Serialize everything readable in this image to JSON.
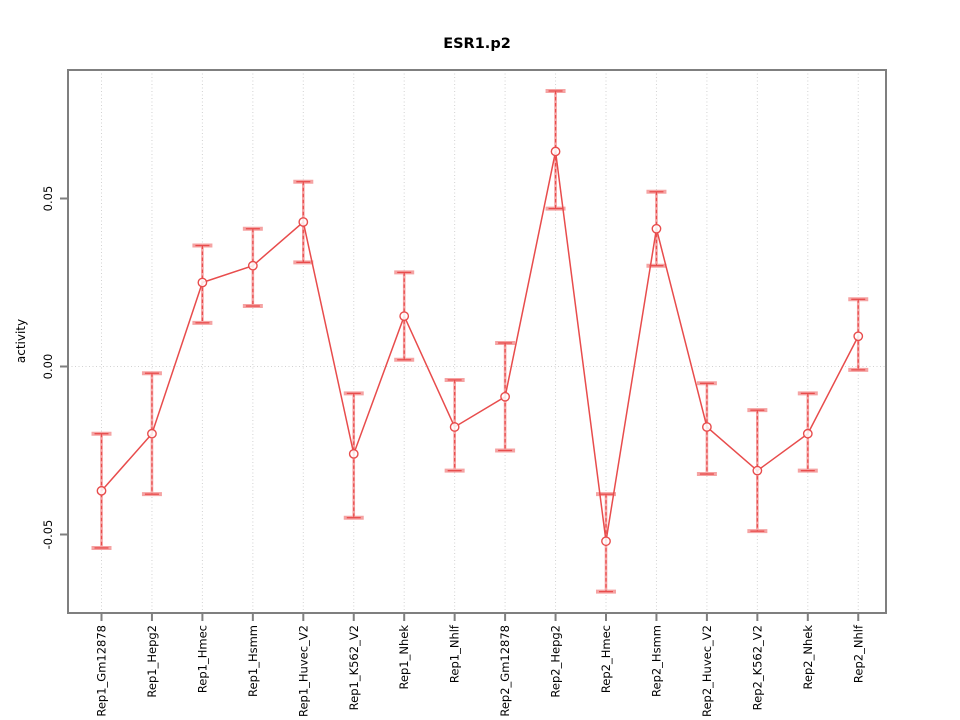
{
  "chart_data": {
    "type": "line",
    "title": "ESR1.p2",
    "xlabel": "",
    "ylabel": "activity",
    "ylim": [
      -0.0734,
      0.0883
    ],
    "grid": "dotted gray: vertical line at each category, horizontal line at y=0",
    "legend": "none",
    "marker": "open-circle",
    "error_bars": "vertical whiskers with caps, dashed center line",
    "yticks": [
      {
        "label": "0.05",
        "value": 0.05
      },
      {
        "label": "0.00",
        "value": 0.0
      },
      {
        "label": "-0.05",
        "value": -0.05
      }
    ],
    "categories": [
      "Rep1_Gm12878",
      "Rep1_Hepg2",
      "Rep1_Hmec",
      "Rep1_Hsmm",
      "Rep1_Huvec_V2",
      "Rep1_K562_V2",
      "Rep1_Nhek",
      "Rep1_Nhlf",
      "Rep2_Gm12878",
      "Rep2_Hepg2",
      "Rep2_Hmec",
      "Rep2_Hsmm",
      "Rep2_Huvec_V2",
      "Rep2_K562_V2",
      "Rep2_Nhek",
      "Rep2_Nhlf"
    ],
    "series": [
      {
        "name": "activity",
        "values": [
          -0.037,
          -0.02,
          0.025,
          0.03,
          0.043,
          -0.026,
          0.015,
          -0.018,
          -0.009,
          0.064,
          -0.052,
          0.041,
          -0.018,
          -0.031,
          -0.02,
          0.009
        ],
        "error_low": [
          -0.054,
          -0.038,
          0.013,
          0.018,
          0.031,
          -0.045,
          0.002,
          -0.031,
          -0.025,
          0.047,
          -0.067,
          0.03,
          -0.032,
          -0.049,
          -0.031,
          -0.001
        ],
        "error_high": [
          -0.02,
          -0.002,
          0.036,
          0.041,
          0.055,
          -0.008,
          0.028,
          -0.004,
          0.007,
          0.082,
          -0.038,
          0.052,
          -0.005,
          -0.013,
          -0.008,
          0.02
        ]
      }
    ],
    "colors": {
      "line": "#e84c4c",
      "error_bar_light": "#f5a3a3",
      "grid": "#d2d2d2",
      "frame": "#7f7f7f",
      "text": "#000000",
      "background": "#ffffff"
    }
  }
}
